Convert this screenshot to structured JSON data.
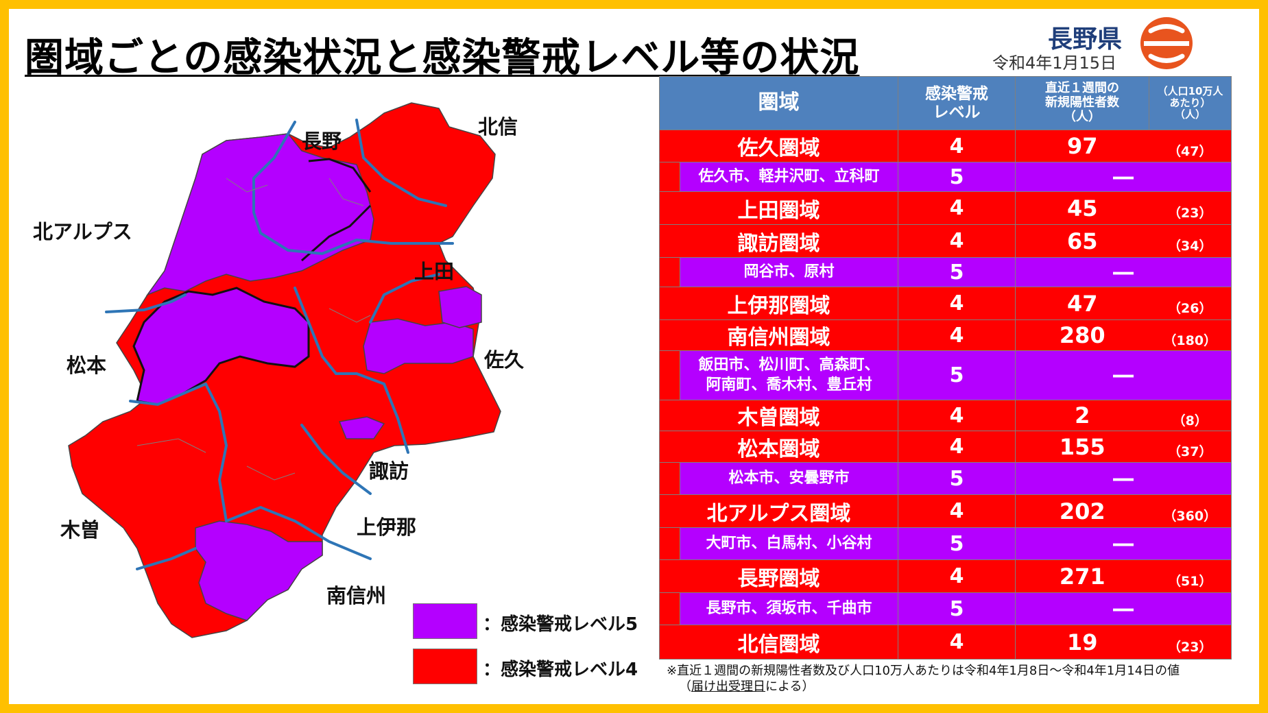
{
  "title": "圏域ごとの感染状況と感染警戒レベル等の状況",
  "prefecture": {
    "name": "長野県",
    "date": "令和4年1月15日"
  },
  "colors": {
    "level5": "#b400ff",
    "level4": "#ff0000",
    "header": "#4f81bd",
    "border": "#ffc000",
    "logo": "#e8541e"
  },
  "map_labels": {
    "nagano": "長野",
    "hokushin": "北信",
    "kita_alps": "北アルプス",
    "ueda": "上田",
    "matsumoto": "松本",
    "saku": "佐久",
    "suwa": "諏訪",
    "kiso": "木曽",
    "kamiina": "上伊那",
    "minamishinshu": "南信州"
  },
  "legend": {
    "level5": "：感染警戒レベル5",
    "level4": "：感染警戒レベル4"
  },
  "table": {
    "headers": {
      "area": "圏域",
      "level_1": "感染警戒",
      "level_2": "レベル",
      "week_1": "直近１週間の",
      "week_2": "新規陽性者数",
      "week_3": "（人）",
      "per_1": "（人口10万人",
      "per_2": "あたり）",
      "per_3": "（人）"
    },
    "rows": [
      {
        "area": "佐久圏域",
        "level": "4",
        "week": "97",
        "per": "（47）"
      },
      {
        "sub_1": "佐久市、軽井沢町、立科町",
        "level": "5",
        "dash": "―"
      },
      {
        "area": "上田圏域",
        "level": "4",
        "week": "45",
        "per": "（23）"
      },
      {
        "area": "諏訪圏域",
        "level": "4",
        "week": "65",
        "per": "（34）"
      },
      {
        "sub_1": "岡谷市、原村",
        "level": "5",
        "dash": "―"
      },
      {
        "area": "上伊那圏域",
        "level": "4",
        "week": "47",
        "per": "（26）"
      },
      {
        "area": "南信州圏域",
        "level": "4",
        "week": "280",
        "per": "（180）"
      },
      {
        "sub_1": "飯田市、松川町、高森町、",
        "sub_2": "阿南町、喬木村、豊丘村",
        "level": "5",
        "dash": "―"
      },
      {
        "area": "木曽圏域",
        "level": "4",
        "week": "2",
        "per": "（8）"
      },
      {
        "area": "松本圏域",
        "level": "4",
        "week": "155",
        "per": "（37）"
      },
      {
        "sub_1": "松本市、安曇野市",
        "level": "5",
        "dash": "―"
      },
      {
        "area": "北アルプス圏域",
        "level": "4",
        "week": "202",
        "per": "（360）"
      },
      {
        "sub_1": "大町市、白馬村、小谷村",
        "level": "5",
        "dash": "―"
      },
      {
        "area": "長野圏域",
        "level": "4",
        "week": "271",
        "per": "（51）"
      },
      {
        "sub_1": "長野市、須坂市、千曲市",
        "level": "5",
        "dash": "―"
      },
      {
        "area": "北信圏域",
        "level": "4",
        "week": "19",
        "per": "（23）"
      }
    ]
  },
  "note": {
    "line1": "※直近１週間の新規陽性者数及び人口10万人あたりは令和4年1月8日～令和4年1月14日の値",
    "line2_open": "（",
    "line2_u": "届け出受理日",
    "line2_close": "による）"
  }
}
